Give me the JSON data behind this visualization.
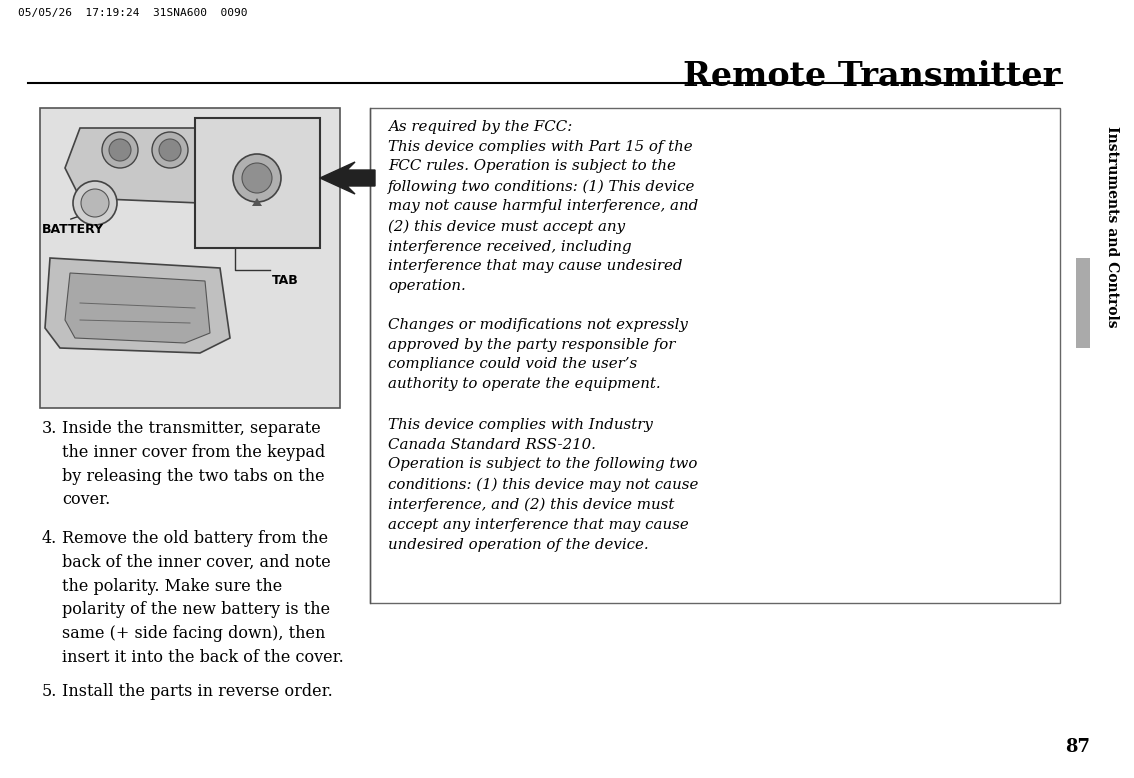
{
  "bg_color": "#ffffff",
  "header_text": "05/05/26  17:19:24  31SNA600  0090",
  "title": "Remote Transmitter",
  "page_number": "87",
  "sidebar_text": "Instruments and Controls",
  "sidebar_tab_color": "#aaaaaa",
  "step3_num": "3.",
  "step3_text": "Inside the transmitter, separate\nthe inner cover from the keypad\nby releasing the two tabs on the\ncover.",
  "step4_num": "4.",
  "step4_text": "Remove the old battery from the\nback of the inner cover, and note\nthe polarity. Make sure the\npolarity of the new battery is the\nsame (+ side facing down), then\ninsert it into the back of the cover.",
  "step5_num": "5.",
  "step5_text": "Install the parts in reverse order.",
  "fcc_para1": "As required by the FCC:\nThis device complies with Part 15 of the\nFCC rules. Operation is subject to the\nfollowing two conditions: (1) This device\nmay not cause harmful interference, and\n(2) this device must accept any\ninterference received, including\ninterference that may cause undesired\noperation.",
  "fcc_para2": "Changes or modifications not expressly\napproved by the party responsible for\ncompliance could void the user’s\nauthority to operate the equipment.",
  "fcc_para3": "This device complies with Industry\nCanada Standard RSS-210.\nOperation is subject to the following two\nconditions: (1) this device may not cause\ninterference, and (2) this device must\naccept any interference that may cause\nundesired operation of the device.",
  "image_bg_color": "#e0e0e0",
  "label_battery": "BATTERY",
  "label_tab": "TAB"
}
